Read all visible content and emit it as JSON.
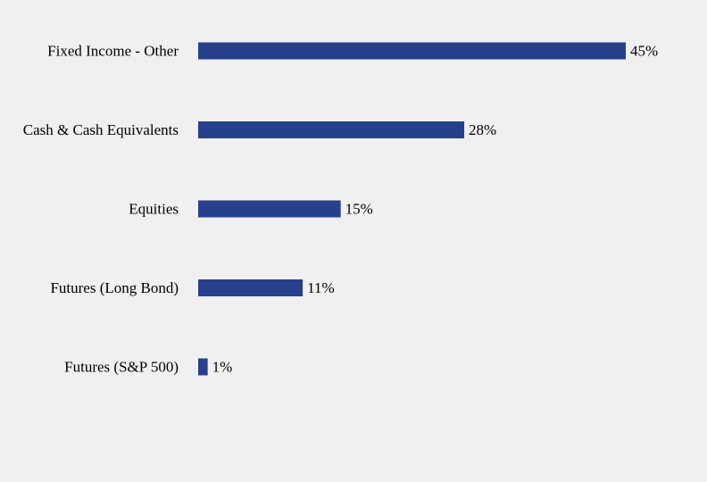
{
  "chart_data": {
    "type": "bar",
    "orientation": "horizontal",
    "title": "",
    "xlabel": "",
    "ylabel": "",
    "categories": [
      "Fixed Income - Other",
      "Cash & Cash Equivalents",
      "Equities",
      "Futures (Long Bond)",
      "Futures (S&P 500)"
    ],
    "values": [
      45,
      28,
      15,
      11,
      1
    ],
    "value_labels": [
      "45%",
      "28%",
      "15%",
      "11%",
      "1%"
    ],
    "xlim": [
      0,
      45
    ],
    "grid": false,
    "legend": "none",
    "bar_color": "#27408b",
    "background_color": "#f0f0f1"
  }
}
